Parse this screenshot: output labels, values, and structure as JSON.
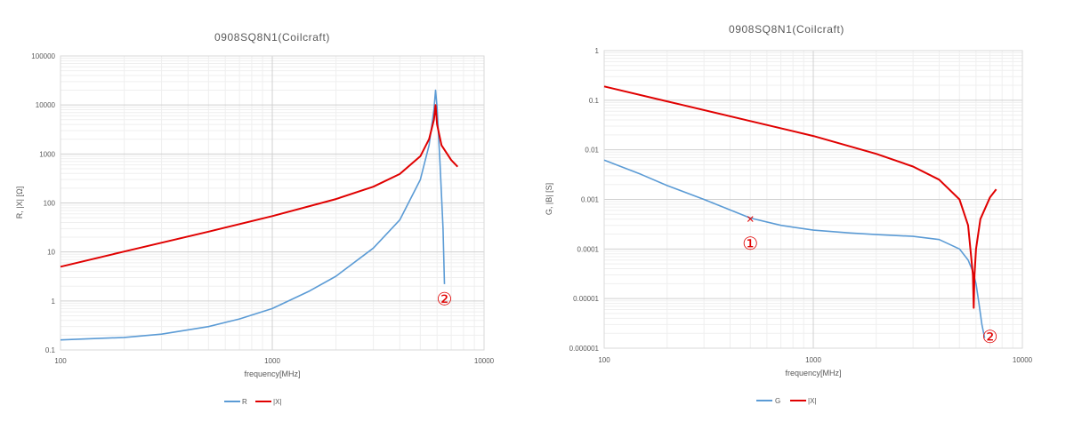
{
  "chart_data": [
    {
      "type": "line",
      "title": "0908SQ8N1(Coilcraft)",
      "xlabel": "frequency[MHz]",
      "ylabel": "R, |X| [Ω]",
      "x_scale": "log",
      "y_scale": "log",
      "xlim": [
        100,
        10000
      ],
      "ylim": [
        0.1,
        100000
      ],
      "x_ticks": [
        "100",
        "1000",
        "10000"
      ],
      "y_ticks": [
        "0.1",
        "1",
        "10",
        "100",
        "1000",
        "10000",
        "100000"
      ],
      "grid": true,
      "legend_position": "bottom",
      "series": [
        {
          "name": "R",
          "color": "#5b9bd5",
          "x": [
            100,
            200,
            300,
            500,
            700,
            1000,
            1500,
            2000,
            3000,
            4000,
            5000,
            5500,
            5800,
            5900,
            6000,
            6200,
            6400,
            6500
          ],
          "y": [
            0.16,
            0.18,
            0.21,
            0.3,
            0.43,
            0.7,
            1.6,
            3.2,
            12,
            45,
            300,
            1500,
            8000,
            20000,
            9000,
            600,
            30,
            2.2
          ]
        },
        {
          "name": "|X|",
          "color": "#e00000",
          "x": [
            100,
            200,
            500,
            1000,
            2000,
            3000,
            4000,
            5000,
            5500,
            5800,
            5900,
            6000,
            6300,
            7000,
            7500
          ],
          "y": [
            5,
            10.2,
            26,
            54,
            120,
            215,
            390,
            900,
            2000,
            5000,
            10000,
            4000,
            1500,
            750,
            550
          ]
        }
      ],
      "annotations": [
        {
          "text": "②",
          "x": 6500,
          "y": 1.1
        }
      ]
    },
    {
      "type": "line",
      "title": "0908SQ8N1(Coilcraft)",
      "xlabel": "frequency[MHz]",
      "ylabel": "G, |B| [S]",
      "x_scale": "log",
      "y_scale": "log",
      "xlim": [
        100,
        10000
      ],
      "ylim": [
        1e-06,
        1
      ],
      "x_ticks": [
        "100",
        "1000",
        "10000"
      ],
      "y_ticks": [
        "0.000001",
        "0.00001",
        "0.0001",
        "0.001",
        "0.01",
        "0.1",
        "1"
      ],
      "grid": true,
      "legend_position": "bottom",
      "series": [
        {
          "name": "G",
          "color": "#5b9bd5",
          "x": [
            100,
            150,
            200,
            300,
            500,
            700,
            1000,
            1500,
            2000,
            3000,
            4000,
            5000,
            5500,
            5800,
            6000,
            6200,
            6400,
            6600
          ],
          "y": [
            0.0062,
            0.0032,
            0.0019,
            0.001,
            0.00042,
            0.0003,
            0.00024,
            0.00021,
            0.000195,
            0.00018,
            0.000155,
            0.0001,
            6e-05,
            3.5e-05,
            2e-05,
            8e-06,
            3e-06,
            1.6e-06
          ]
        },
        {
          "name": "|X|",
          "color": "#e00000",
          "x": [
            100,
            200,
            500,
            1000,
            2000,
            3000,
            4000,
            5000,
            5500,
            5800,
            5850,
            5900,
            6000,
            6300,
            7000,
            7500
          ],
          "y": [
            0.19,
            0.095,
            0.038,
            0.019,
            0.0083,
            0.0046,
            0.0025,
            0.001,
            0.0003,
            3e-05,
            6.5e-06,
            3e-05,
            0.0001,
            0.0004,
            0.0011,
            0.0016
          ]
        }
      ],
      "annotations": [
        {
          "text": "①",
          "x": 500,
          "y": 0.00013
        },
        {
          "text": "②",
          "x": 7000,
          "y": 1.7e-06
        }
      ],
      "markers": [
        {
          "symbol": "×",
          "x": 500,
          "y": 0.0004
        }
      ]
    }
  ]
}
